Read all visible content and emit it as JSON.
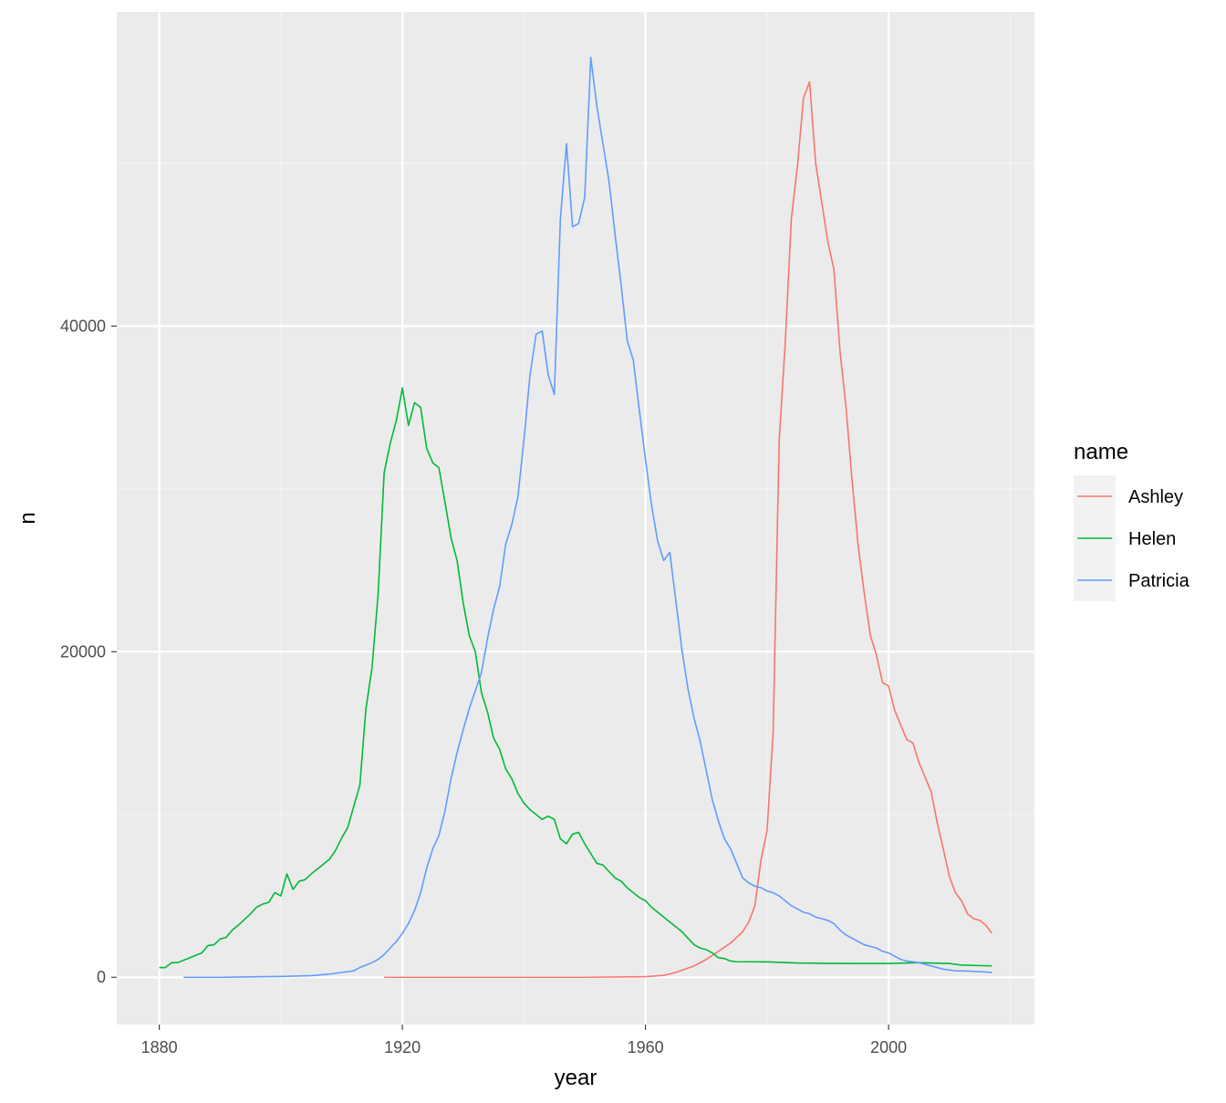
{
  "chart_data": {
    "type": "line",
    "title": "",
    "xlabel": "year",
    "ylabel": "n",
    "xlim": [
      1873,
      2024
    ],
    "ylim": [
      -2900,
      59300
    ],
    "x_ticks": [
      1880,
      1920,
      1960,
      2000
    ],
    "y_ticks": [
      0,
      20000,
      40000
    ],
    "grid": true,
    "legend": {
      "title": "name",
      "position": "right"
    },
    "series": [
      {
        "name": "Ashley",
        "color": "#F8766D",
        "points": [
          [
            1917,
            0
          ],
          [
            1930,
            0
          ],
          [
            1950,
            0
          ],
          [
            1960,
            40
          ],
          [
            1963,
            120
          ],
          [
            1965,
            300
          ],
          [
            1968,
            700
          ],
          [
            1970,
            1100
          ],
          [
            1972,
            1600
          ],
          [
            1974,
            2100
          ],
          [
            1976,
            2800
          ],
          [
            1977,
            3400
          ],
          [
            1978,
            4400
          ],
          [
            1979,
            7200
          ],
          [
            1980,
            9000
          ],
          [
            1981,
            15000
          ],
          [
            1982,
            33000
          ],
          [
            1983,
            39000
          ],
          [
            1984,
            46600
          ],
          [
            1985,
            49800
          ],
          [
            1986,
            54000
          ],
          [
            1987,
            55000
          ],
          [
            1988,
            50000
          ],
          [
            1989,
            47600
          ],
          [
            1990,
            45200
          ],
          [
            1991,
            43500
          ],
          [
            1992,
            38500
          ],
          [
            1993,
            35000
          ],
          [
            1994,
            30500
          ],
          [
            1995,
            26500
          ],
          [
            1996,
            23600
          ],
          [
            1997,
            21000
          ],
          [
            1998,
            19800
          ],
          [
            1999,
            18100
          ],
          [
            2000,
            17900
          ],
          [
            2001,
            16400
          ],
          [
            2002,
            15500
          ],
          [
            2003,
            14600
          ],
          [
            2004,
            14400
          ],
          [
            2005,
            13200
          ],
          [
            2006,
            12300
          ],
          [
            2007,
            11400
          ],
          [
            2008,
            9500
          ],
          [
            2009,
            7900
          ],
          [
            2010,
            6200
          ],
          [
            2011,
            5200
          ],
          [
            2012,
            4700
          ],
          [
            2013,
            3900
          ],
          [
            2014,
            3600
          ],
          [
            2015,
            3500
          ],
          [
            2016,
            3200
          ],
          [
            2017,
            2700
          ]
        ]
      },
      {
        "name": "Helen",
        "color": "#00BA38",
        "points": [
          [
            1880,
            600
          ],
          [
            1881,
            600
          ],
          [
            1882,
            900
          ],
          [
            1883,
            900
          ],
          [
            1884,
            1050
          ],
          [
            1885,
            1200
          ],
          [
            1886,
            1350
          ],
          [
            1887,
            1500
          ],
          [
            1888,
            1950
          ],
          [
            1889,
            2000
          ],
          [
            1890,
            2350
          ],
          [
            1891,
            2450
          ],
          [
            1892,
            2900
          ],
          [
            1893,
            3200
          ],
          [
            1894,
            3550
          ],
          [
            1895,
            3900
          ],
          [
            1896,
            4300
          ],
          [
            1897,
            4500
          ],
          [
            1898,
            4600
          ],
          [
            1899,
            5200
          ],
          [
            1900,
            5000
          ],
          [
            1901,
            6350
          ],
          [
            1902,
            5400
          ],
          [
            1903,
            5900
          ],
          [
            1904,
            6000
          ],
          [
            1905,
            6350
          ],
          [
            1906,
            6650
          ],
          [
            1907,
            6950
          ],
          [
            1908,
            7250
          ],
          [
            1909,
            7800
          ],
          [
            1910,
            8550
          ],
          [
            1911,
            9200
          ],
          [
            1912,
            10500
          ],
          [
            1913,
            11800
          ],
          [
            1914,
            16500
          ],
          [
            1915,
            19000
          ],
          [
            1916,
            23500
          ],
          [
            1917,
            31000
          ],
          [
            1918,
            32800
          ],
          [
            1919,
            34200
          ],
          [
            1920,
            36200
          ],
          [
            1921,
            33900
          ],
          [
            1922,
            35300
          ],
          [
            1923,
            35000
          ],
          [
            1924,
            32500
          ],
          [
            1925,
            31600
          ],
          [
            1926,
            31300
          ],
          [
            1927,
            29200
          ],
          [
            1928,
            27000
          ],
          [
            1929,
            25600
          ],
          [
            1930,
            23000
          ],
          [
            1931,
            21000
          ],
          [
            1932,
            20000
          ],
          [
            1933,
            17500
          ],
          [
            1934,
            16300
          ],
          [
            1935,
            14700
          ],
          [
            1936,
            14000
          ],
          [
            1937,
            12800
          ],
          [
            1938,
            12200
          ],
          [
            1939,
            11300
          ],
          [
            1940,
            10700
          ],
          [
            1941,
            10300
          ],
          [
            1942,
            10000
          ],
          [
            1943,
            9700
          ],
          [
            1944,
            9900
          ],
          [
            1945,
            9700
          ],
          [
            1946,
            8500
          ],
          [
            1947,
            8200
          ],
          [
            1948,
            8800
          ],
          [
            1949,
            8900
          ],
          [
            1950,
            8200
          ],
          [
            1951,
            7600
          ],
          [
            1952,
            7000
          ],
          [
            1953,
            6900
          ],
          [
            1954,
            6500
          ],
          [
            1955,
            6100
          ],
          [
            1956,
            5900
          ],
          [
            1957,
            5500
          ],
          [
            1958,
            5200
          ],
          [
            1959,
            4900
          ],
          [
            1960,
            4700
          ],
          [
            1961,
            4300
          ],
          [
            1962,
            4000
          ],
          [
            1963,
            3700
          ],
          [
            1964,
            3400
          ],
          [
            1965,
            3100
          ],
          [
            1966,
            2800
          ],
          [
            1967,
            2400
          ],
          [
            1968,
            2000
          ],
          [
            1969,
            1800
          ],
          [
            1970,
            1700
          ],
          [
            1971,
            1500
          ],
          [
            1972,
            1200
          ],
          [
            1973,
            1150
          ],
          [
            1974,
            1000
          ],
          [
            1975,
            960
          ],
          [
            1980,
            950
          ],
          [
            1985,
            880
          ],
          [
            1990,
            860
          ],
          [
            1995,
            850
          ],
          [
            2000,
            850
          ],
          [
            2005,
            900
          ],
          [
            2010,
            850
          ],
          [
            2012,
            750
          ],
          [
            2017,
            700
          ]
        ]
      },
      {
        "name": "Patricia",
        "color": "#619CFF",
        "points": [
          [
            1884,
            0
          ],
          [
            1890,
            0
          ],
          [
            1900,
            50
          ],
          [
            1905,
            100
          ],
          [
            1908,
            200
          ],
          [
            1910,
            300
          ],
          [
            1912,
            400
          ],
          [
            1913,
            600
          ],
          [
            1915,
            900
          ],
          [
            1916,
            1100
          ],
          [
            1917,
            1400
          ],
          [
            1918,
            1800
          ],
          [
            1919,
            2200
          ],
          [
            1920,
            2700
          ],
          [
            1921,
            3300
          ],
          [
            1922,
            4100
          ],
          [
            1923,
            5200
          ],
          [
            1924,
            6700
          ],
          [
            1925,
            7900
          ],
          [
            1926,
            8700
          ],
          [
            1927,
            10200
          ],
          [
            1928,
            12200
          ],
          [
            1929,
            13800
          ],
          [
            1930,
            15200
          ],
          [
            1931,
            16500
          ],
          [
            1932,
            17600
          ],
          [
            1933,
            18700
          ],
          [
            1934,
            20800
          ],
          [
            1935,
            22600
          ],
          [
            1936,
            24000
          ],
          [
            1937,
            26600
          ],
          [
            1938,
            27800
          ],
          [
            1939,
            29500
          ],
          [
            1940,
            33000
          ],
          [
            1941,
            37000
          ],
          [
            1942,
            39500
          ],
          [
            1943,
            39700
          ],
          [
            1944,
            37000
          ],
          [
            1945,
            35800
          ],
          [
            1946,
            46600
          ],
          [
            1947,
            51200
          ],
          [
            1948,
            46100
          ],
          [
            1949,
            46300
          ],
          [
            1950,
            47900
          ],
          [
            1951,
            56500
          ],
          [
            1952,
            53500
          ],
          [
            1953,
            51200
          ],
          [
            1954,
            48900
          ],
          [
            1955,
            45600
          ],
          [
            1956,
            42500
          ],
          [
            1957,
            39100
          ],
          [
            1958,
            37900
          ],
          [
            1959,
            34800
          ],
          [
            1960,
            31800
          ],
          [
            1961,
            29000
          ],
          [
            1962,
            26800
          ],
          [
            1963,
            25600
          ],
          [
            1964,
            26100
          ],
          [
            1965,
            23100
          ],
          [
            1966,
            20100
          ],
          [
            1967,
            17700
          ],
          [
            1968,
            15900
          ],
          [
            1969,
            14500
          ],
          [
            1970,
            12700
          ],
          [
            1971,
            10900
          ],
          [
            1972,
            9600
          ],
          [
            1973,
            8500
          ],
          [
            1974,
            7900
          ],
          [
            1975,
            7000
          ],
          [
            1976,
            6100
          ],
          [
            1977,
            5800
          ],
          [
            1978,
            5600
          ],
          [
            1979,
            5500
          ],
          [
            1980,
            5300
          ],
          [
            1981,
            5200
          ],
          [
            1982,
            5000
          ],
          [
            1983,
            4700
          ],
          [
            1984,
            4400
          ],
          [
            1985,
            4200
          ],
          [
            1986,
            4000
          ],
          [
            1987,
            3900
          ],
          [
            1988,
            3700
          ],
          [
            1989,
            3600
          ],
          [
            1990,
            3500
          ],
          [
            1991,
            3300
          ],
          [
            1992,
            2900
          ],
          [
            1993,
            2600
          ],
          [
            1994,
            2400
          ],
          [
            1995,
            2200
          ],
          [
            1996,
            2000
          ],
          [
            1997,
            1900
          ],
          [
            1998,
            1800
          ],
          [
            1999,
            1600
          ],
          [
            2000,
            1500
          ],
          [
            2001,
            1300
          ],
          [
            2002,
            1100
          ],
          [
            2003,
            1000
          ],
          [
            2004,
            950
          ],
          [
            2005,
            900
          ],
          [
            2006,
            800
          ],
          [
            2007,
            700
          ],
          [
            2008,
            600
          ],
          [
            2009,
            500
          ],
          [
            2010,
            450
          ],
          [
            2011,
            400
          ],
          [
            2013,
            380
          ],
          [
            2015,
            350
          ],
          [
            2017,
            300
          ]
        ]
      }
    ]
  }
}
